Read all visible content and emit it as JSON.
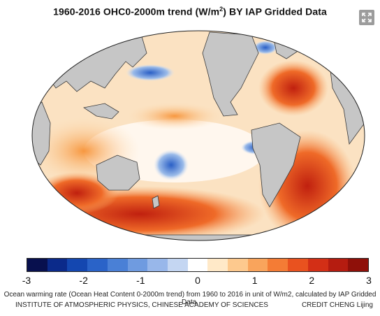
{
  "header": {
    "title_main": "1960-2016 OHC0-2000m trend  (W/m",
    "title_sup": "2",
    "title_tail": ") BY IAP Gridded Data"
  },
  "expand_button": {
    "icon": "expand-icon"
  },
  "colorbar": {
    "ticks": [
      "-3",
      "-2",
      "-1",
      "0",
      "1",
      "2",
      "3"
    ],
    "colors": [
      "#08104e",
      "#0b2a8a",
      "#1447b0",
      "#2a63c8",
      "#4a80d6",
      "#6f9be0",
      "#98b7ea",
      "#c4d6f2",
      "#ffffff",
      "#ffe9c8",
      "#fdc98e",
      "#f9a45c",
      "#f47c35",
      "#e9521f",
      "#d32f16",
      "#b51c10",
      "#8f1009"
    ]
  },
  "caption": "Ocean warming rate (Ocean Heat Content 0-2000m trend) from 1960 to 2016 in unit of W/m2, calculated by IAP Gridded Data.",
  "footer": {
    "institute": "INSTITUTE OF ATMOSPHERIC PHYSICS, CHINESE ACADEMY OF SCIENCES",
    "credit": "CREDIT CHENG Lijing"
  }
}
